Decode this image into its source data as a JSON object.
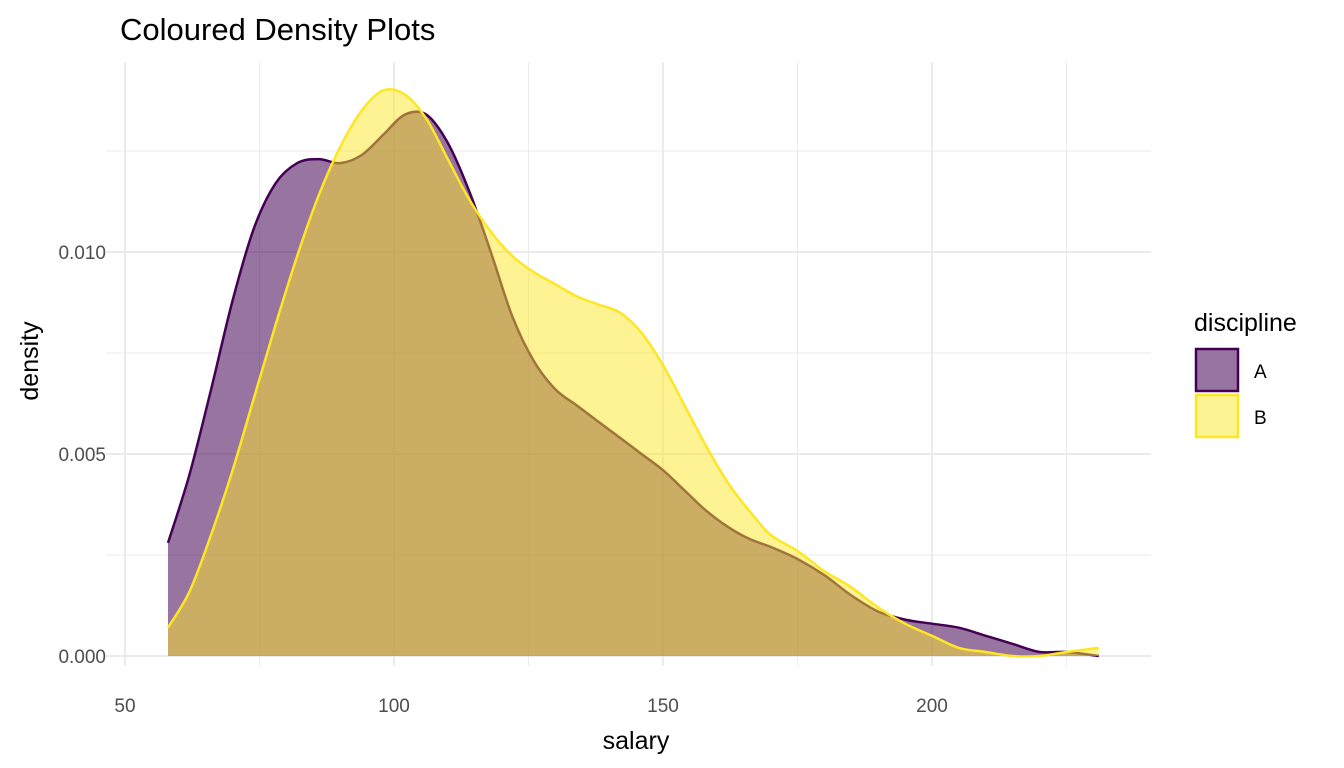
{
  "chart_data": {
    "type": "area",
    "title": "Coloured Density Plots",
    "xlabel": "salary",
    "ylabel": "density",
    "xlim": [
      50,
      240
    ],
    "ylim": [
      0,
      0.0148
    ],
    "x_ticks": [
      50,
      100,
      150,
      200
    ],
    "x_tick_labels": [
      "50",
      "100",
      "150",
      "200"
    ],
    "y_ticks": [
      0,
      0.005,
      0.01
    ],
    "y_tick_labels": [
      "0.000",
      "0.005",
      "0.010"
    ],
    "grid": true,
    "legend": {
      "title": "discipline",
      "placement": "right"
    },
    "series": [
      {
        "name": "A",
        "color": "#440154",
        "fill": "#440154",
        "fill_opacity": 0.55,
        "points": [
          [
            58,
            0.0028
          ],
          [
            62,
            0.0045
          ],
          [
            66,
            0.0066
          ],
          [
            70,
            0.0088
          ],
          [
            74,
            0.0106
          ],
          [
            78,
            0.0117
          ],
          [
            82,
            0.0122
          ],
          [
            86,
            0.0123
          ],
          [
            90,
            0.0122
          ],
          [
            94,
            0.0124
          ],
          [
            98,
            0.0129
          ],
          [
            102,
            0.0134
          ],
          [
            106,
            0.0134
          ],
          [
            110,
            0.0127
          ],
          [
            114,
            0.0115
          ],
          [
            118,
            0.01
          ],
          [
            122,
            0.0084
          ],
          [
            126,
            0.0073
          ],
          [
            130,
            0.0066
          ],
          [
            134,
            0.0062
          ],
          [
            138,
            0.0058
          ],
          [
            142,
            0.0054
          ],
          [
            146,
            0.005
          ],
          [
            150,
            0.0046
          ],
          [
            154,
            0.0041
          ],
          [
            158,
            0.0036
          ],
          [
            162,
            0.0032
          ],
          [
            166,
            0.0029
          ],
          [
            170,
            0.0027
          ],
          [
            175,
            0.0024
          ],
          [
            180,
            0.002
          ],
          [
            185,
            0.0015
          ],
          [
            190,
            0.0011
          ],
          [
            195,
            0.0009
          ],
          [
            200,
            0.0008
          ],
          [
            205,
            0.0007
          ],
          [
            210,
            0.0005
          ],
          [
            215,
            0.0003
          ],
          [
            220,
            0.0001
          ],
          [
            225,
            0.0001
          ],
          [
            231,
            0.0
          ]
        ]
      },
      {
        "name": "B",
        "color": "#FDE725",
        "fill": "#FDE725",
        "fill_opacity": 0.5,
        "points": [
          [
            58,
            0.0007
          ],
          [
            62,
            0.0016
          ],
          [
            66,
            0.003
          ],
          [
            70,
            0.0046
          ],
          [
            74,
            0.0064
          ],
          [
            78,
            0.0082
          ],
          [
            82,
            0.0099
          ],
          [
            86,
            0.0114
          ],
          [
            90,
            0.0126
          ],
          [
            94,
            0.0135
          ],
          [
            98,
            0.014
          ],
          [
            102,
            0.0139
          ],
          [
            106,
            0.0133
          ],
          [
            110,
            0.0123
          ],
          [
            114,
            0.0113
          ],
          [
            118,
            0.0105
          ],
          [
            122,
            0.0099
          ],
          [
            126,
            0.0095
          ],
          [
            130,
            0.0092
          ],
          [
            134,
            0.0089
          ],
          [
            138,
            0.0087
          ],
          [
            142,
            0.0085
          ],
          [
            146,
            0.008
          ],
          [
            150,
            0.0072
          ],
          [
            154,
            0.0062
          ],
          [
            158,
            0.0052
          ],
          [
            162,
            0.0043
          ],
          [
            166,
            0.0036
          ],
          [
            170,
            0.003
          ],
          [
            175,
            0.0026
          ],
          [
            180,
            0.0021
          ],
          [
            185,
            0.0017
          ],
          [
            190,
            0.0012
          ],
          [
            195,
            0.0008
          ],
          [
            200,
            0.0005
          ],
          [
            205,
            0.0002
          ],
          [
            210,
            0.0001
          ],
          [
            215,
            0.0
          ],
          [
            220,
            0.0
          ],
          [
            225,
            0.0001
          ],
          [
            231,
            0.0002
          ]
        ]
      }
    ]
  }
}
